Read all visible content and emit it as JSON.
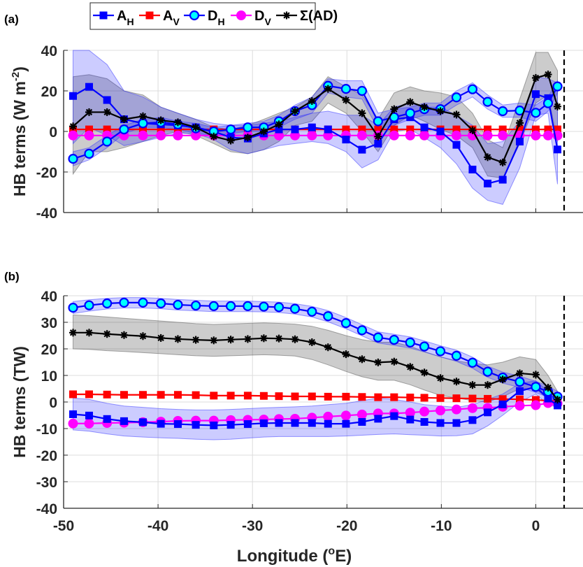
{
  "legend": {
    "entries": [
      {
        "key": "AH",
        "label": "A",
        "sub": "H",
        "color": "#0000FF",
        "marker": "square",
        "face": "#0000FF"
      },
      {
        "key": "AV",
        "label": "A",
        "sub": "V",
        "color": "#FF0000",
        "marker": "square",
        "face": "#FF0000"
      },
      {
        "key": "DH",
        "label": "D",
        "sub": "H",
        "color": "#0000FF",
        "marker": "circle",
        "face": "#00FFFF"
      },
      {
        "key": "DV",
        "label": "D",
        "sub": "V",
        "color": "#FF00FF",
        "marker": "circle",
        "face": "#FF00FF"
      },
      {
        "key": "SUM",
        "label": "Σ(AD)",
        "sub": "",
        "color": "#000000",
        "marker": "star",
        "face": "#000000"
      }
    ]
  },
  "xlabel": {
    "text": "Longitude (",
    "sup": "o",
    "unit": "E)"
  },
  "dashed_line_x": 3,
  "chart_data": [
    {
      "panel_label": "(a)",
      "type": "line",
      "title": "",
      "ylabel": {
        "text": "HB terms (W m",
        "sup": "-2",
        "close": ")"
      },
      "xlabel": "Longitude (°E)",
      "xlim": [
        -50,
        5
      ],
      "ylim": [
        -40,
        40
      ],
      "xticks": [
        -50,
        -40,
        -30,
        -20,
        -10,
        0
      ],
      "yticks": [
        -40,
        -20,
        0,
        20,
        40
      ],
      "ytick_labels": [
        "-40",
        "-20",
        "0",
        "20",
        "40"
      ],
      "grid": true,
      "x": [
        -49.0,
        -47.3,
        -45.4,
        -43.6,
        -41.6,
        -39.7,
        -37.9,
        -36.0,
        -34.1,
        -32.3,
        -30.5,
        -28.8,
        -27.2,
        -25.5,
        -23.7,
        -22.0,
        -20.1,
        -18.4,
        -16.7,
        -15.0,
        -13.3,
        -11.8,
        -10.1,
        -8.4,
        -6.7,
        -5.1,
        -3.5,
        -1.7,
        0.0,
        1.3,
        2.3
      ],
      "series": [
        {
          "key": "AH",
          "name": "A_H",
          "values": [
            17.5,
            22,
            15.5,
            6,
            4,
            3.5,
            3,
            2,
            0,
            -3,
            -3.5,
            -1,
            1,
            1,
            2,
            1,
            -4,
            -9,
            -6,
            6,
            7,
            2,
            0,
            -6.6,
            -18.8,
            -25.7,
            -23.8,
            -5,
            18.4,
            16.4,
            -8.9
          ],
          "band_upper": [
            40,
            40,
            33,
            20,
            17,
            12,
            9,
            6,
            4,
            3,
            3,
            4,
            5,
            7,
            9,
            10,
            8,
            8,
            3,
            12,
            14,
            12,
            12,
            8,
            3,
            -6,
            -5,
            5,
            27,
            26,
            24
          ],
          "band_lower": [
            -6,
            2,
            -2,
            -7,
            -5,
            -3,
            -1,
            -1,
            -4,
            -9,
            -11,
            -9,
            -7,
            -6,
            -5,
            -6,
            -10,
            -18,
            -14,
            0,
            1,
            -3,
            -8,
            -16,
            -28,
            -34,
            -36,
            -18,
            8,
            9,
            -26
          ]
        },
        {
          "key": "AV",
          "name": "A_V",
          "values": [
            1,
            1,
            1,
            1,
            1,
            1,
            1,
            1,
            1,
            1,
            1,
            1,
            1,
            1,
            1,
            1,
            1,
            1,
            1,
            1,
            1,
            1,
            1,
            1,
            1,
            1,
            1,
            1,
            1,
            1,
            1
          ]
        },
        {
          "key": "DH",
          "name": "D_H",
          "values": [
            -13.5,
            -11,
            -5,
            1,
            4,
            4.5,
            3.5,
            1.5,
            0,
            1,
            2,
            2,
            5,
            10,
            13,
            22.5,
            21,
            20,
            5,
            7,
            9,
            11,
            11,
            16.8,
            20.8,
            14.6,
            10,
            10.3,
            9.2,
            13.9,
            22.2
          ],
          "band_upper": [
            -10,
            -8,
            -2,
            3,
            6,
            7,
            5,
            4,
            2,
            3,
            4,
            5,
            8,
            13,
            17,
            26,
            25,
            25,
            9,
            11,
            12,
            14,
            14,
            20,
            24,
            18,
            13,
            14,
            13,
            17,
            25
          ],
          "band_lower": [
            -17,
            -14,
            -8,
            -1,
            2,
            2,
            1,
            -1,
            -2,
            -1,
            0,
            0,
            2,
            6,
            9,
            19,
            17,
            16,
            1,
            3,
            6,
            8,
            8,
            13,
            17,
            11,
            7,
            7,
            5,
            10,
            19
          ]
        },
        {
          "key": "DV",
          "name": "D_V",
          "values": [
            -2,
            -2,
            -2,
            -2,
            -2,
            -2,
            -2,
            -2,
            -2,
            -2,
            -2,
            -2,
            -2,
            -2,
            -2,
            -2,
            -2,
            -2,
            -2,
            -2,
            -2,
            -2,
            -2,
            -2,
            -2,
            -2,
            -2,
            -2,
            -2,
            -2,
            -2
          ]
        },
        {
          "key": "SUM",
          "name": "Σ(AD)",
          "values": [
            2.5,
            9.5,
            9.5,
            6,
            7.5,
            5.5,
            4.5,
            2,
            -2.5,
            -4.5,
            -3,
            0,
            3.5,
            10,
            15,
            21,
            15.5,
            9,
            -2.5,
            11,
            14.5,
            12,
            10,
            8.3,
            0.6,
            -12.7,
            -15.3,
            4.2,
            26.4,
            28.1,
            12.3
          ],
          "band_upper": [
            27,
            28,
            26,
            20,
            18,
            12,
            9,
            6,
            2,
            1,
            3,
            6,
            9,
            12,
            17,
            27,
            22,
            18,
            6,
            19,
            22,
            20,
            19,
            17,
            9,
            -4,
            -8,
            16,
            39,
            39,
            30
          ],
          "band_lower": [
            -21,
            -10,
            -10,
            -8,
            -5,
            -2,
            0,
            -2,
            -6,
            -10,
            -11,
            -9,
            -5,
            3,
            5,
            14,
            9,
            0,
            -10,
            3,
            8,
            5,
            1,
            -2,
            -8,
            -22,
            -23,
            -6,
            14,
            18,
            -5
          ]
        }
      ]
    },
    {
      "panel_label": "(b)",
      "type": "line",
      "title": "",
      "ylabel": {
        "text": "HB terms (TW)",
        "sup": "",
        "close": ""
      },
      "xlabel": "Longitude (°E)",
      "xlim": [
        -50,
        5
      ],
      "ylim": [
        -40,
        40
      ],
      "xticks": [
        -50,
        -40,
        -30,
        -20,
        -10,
        0
      ],
      "xtick_labels": [
        "-50",
        "-40",
        "-30",
        "-20",
        "-10",
        "0"
      ],
      "yticks": [
        -40,
        -30,
        -20,
        -10,
        0,
        10,
        20,
        30,
        40
      ],
      "ytick_labels": [
        "-40",
        "-30",
        "-20",
        "-10",
        "0",
        "10",
        "20",
        "30",
        "40"
      ],
      "grid": true,
      "x": [
        -49.0,
        -47.3,
        -45.4,
        -43.6,
        -41.6,
        -39.7,
        -37.9,
        -36.0,
        -34.1,
        -32.3,
        -30.5,
        -28.8,
        -27.2,
        -25.5,
        -23.7,
        -22.0,
        -20.1,
        -18.4,
        -16.7,
        -15.0,
        -13.3,
        -11.8,
        -10.1,
        -8.4,
        -6.7,
        -5.1,
        -3.5,
        -1.7,
        0.0,
        1.3,
        2.3
      ],
      "series": [
        {
          "key": "AH",
          "name": "A_H",
          "values": [
            -4.6,
            -5.1,
            -6.4,
            -7.2,
            -7.6,
            -8.2,
            -8.3,
            -8.6,
            -8.8,
            -8.6,
            -8.3,
            -8.0,
            -7.9,
            -7.9,
            -7.9,
            -8.2,
            -8.2,
            -7.5,
            -6.3,
            -5.3,
            -6.6,
            -7.5,
            -7.9,
            -7.9,
            -6.8,
            -3.9,
            -0.9,
            4.1,
            5.7,
            1.3,
            -1.3
          ],
          "band_upper": [
            1.5,
            1,
            -0.5,
            -1.5,
            -2,
            -2.5,
            -2.8,
            -3,
            -3,
            -2.8,
            -2.5,
            -2.2,
            -2,
            -1.8,
            -1.5,
            -1,
            -0.5,
            0.5,
            1.5,
            1,
            0,
            -1,
            -1.5,
            -2,
            -1,
            1,
            3,
            7,
            8,
            4,
            0
          ],
          "band_lower": [
            -10.5,
            -11,
            -12,
            -12.8,
            -13.2,
            -13.5,
            -13.7,
            -14,
            -14.2,
            -14,
            -13.6,
            -13.2,
            -13,
            -13,
            -13,
            -13,
            -12.8,
            -12.5,
            -12.2,
            -12,
            -12.3,
            -12.5,
            -12.8,
            -12.7,
            -12,
            -9,
            -5,
            0,
            3,
            -1,
            -2
          ]
        },
        {
          "key": "AV",
          "name": "A_V",
          "values": [
            2.9,
            2.9,
            2.8,
            2.7,
            2.7,
            2.7,
            2.7,
            2.6,
            2.4,
            2.4,
            2.4,
            2.3,
            2.2,
            2.1,
            2.1,
            2.0,
            2.0,
            1.9,
            1.8,
            1.8,
            1.7,
            1.6,
            1.5,
            1.4,
            1.3,
            1.2,
            1.1,
            1.0,
            0.8,
            0.5,
            0.3
          ]
        },
        {
          "key": "DH",
          "name": "D_H",
          "values": [
            35.5,
            36.4,
            37.1,
            37.4,
            37.4,
            37.1,
            36.6,
            36.3,
            36.1,
            36.1,
            36.1,
            35.9,
            35.7,
            35.1,
            34.0,
            32.3,
            29.7,
            27.0,
            24.3,
            23.4,
            22.4,
            20.9,
            19.1,
            17.4,
            14.8,
            11.4,
            9.2,
            7.6,
            5.7,
            3.9,
            2.0
          ],
          "band_upper": [
            37.8,
            38.5,
            39,
            39.3,
            39.3,
            39,
            38.6,
            38.3,
            38,
            38,
            38,
            37.8,
            37.6,
            37,
            36,
            34.4,
            31.8,
            29.1,
            26.4,
            25.5,
            24.5,
            23,
            21.2,
            19.5,
            16.9,
            13.5,
            11.3,
            9.7,
            7.8,
            6,
            4
          ],
          "band_lower": [
            33.3,
            34.2,
            35,
            35.4,
            35.4,
            35.1,
            34.6,
            34.3,
            34,
            34,
            34,
            33.9,
            33.7,
            33.1,
            32,
            30.2,
            27.6,
            24.9,
            22.2,
            21.3,
            20.3,
            18.8,
            17,
            15.3,
            12.7,
            9.3,
            7.1,
            5.5,
            3.6,
            1.8,
            0
          ]
        },
        {
          "key": "DV",
          "name": "D_V",
          "values": [
            -8.1,
            -8.1,
            -7.9,
            -7.8,
            -7.6,
            -7.4,
            -7.1,
            -7.0,
            -7.0,
            -6.8,
            -6.7,
            -6.6,
            -6.4,
            -6.3,
            -5.9,
            -5.5,
            -5.1,
            -4.7,
            -4.3,
            -4.3,
            -4.0,
            -3.6,
            -3.2,
            -2.8,
            -2.3,
            -2.2,
            -1.8,
            -1.4,
            -1.2,
            -0.4,
            -0.6
          ]
        },
        {
          "key": "SUM",
          "name": "Σ(AD)",
          "values": [
            26.1,
            26.1,
            25.6,
            25.2,
            24.8,
            24.1,
            23.7,
            23.4,
            23.2,
            23.5,
            23.7,
            24.0,
            23.9,
            23.6,
            22.5,
            20.6,
            18.0,
            16.1,
            14.9,
            15.2,
            13.2,
            11.1,
            9.0,
            7.7,
            6.4,
            6.4,
            8.5,
            10.8,
            10.3,
            5.4,
            0.9
          ],
          "band_upper": [
            32.8,
            32.5,
            32,
            31.5,
            31,
            30.5,
            30,
            29.5,
            29.2,
            29.4,
            29.6,
            29.8,
            29.6,
            29.3,
            28.5,
            27,
            25,
            23.5,
            22.5,
            22.5,
            21,
            19,
            17,
            15.5,
            14.5,
            14,
            15,
            17,
            16,
            10,
            4
          ],
          "band_lower": [
            20,
            19.8,
            19.3,
            19,
            18.6,
            18.2,
            17.8,
            17.4,
            17.2,
            17.4,
            17.6,
            17.8,
            17.6,
            17.3,
            16,
            14,
            11.5,
            9.5,
            8.2,
            8.2,
            6.5,
            4.5,
            2.5,
            1.5,
            0.5,
            0,
            2,
            5,
            5,
            1,
            -1
          ]
        }
      ]
    }
  ]
}
